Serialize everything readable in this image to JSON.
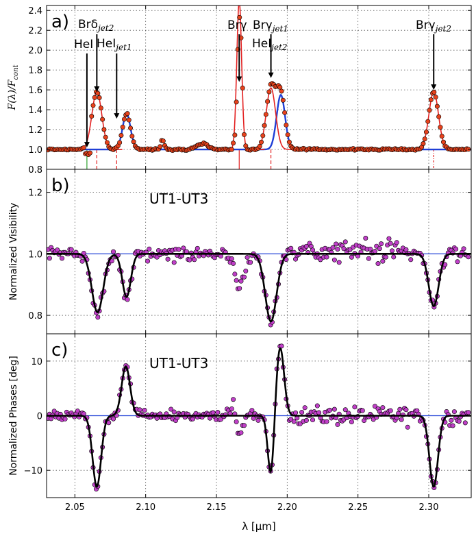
{
  "chart_data": [
    {
      "panel_label": "a)",
      "type": "line",
      "ylabel": "F(λ)/F_cont",
      "ylabel_main": "F(λ)/F",
      "ylabel_sub": "cont",
      "xlim": [
        2.03,
        2.33
      ],
      "ylim": [
        0.8,
        2.45
      ],
      "yticks": [
        "0.8",
        "1.0",
        "1.2",
        "1.4",
        "1.6",
        "1.8",
        "2.0",
        "2.2",
        "2.4"
      ],
      "grid": true,
      "annotations": [
        {
          "main": "HeI",
          "sub": "",
          "x": 2.0585
        },
        {
          "main": "Brδ",
          "sub": "jet2",
          "x": 2.0655
        },
        {
          "main": "HeI",
          "sub": "jet1",
          "x": 2.0795
        },
        {
          "main": "Brγ",
          "sub": "",
          "x": 2.1661
        },
        {
          "main": "Brγ",
          "sub": "jet1",
          "x": 2.1885
        },
        {
          "main": "HeI",
          "sub": "jet2",
          "x": 2.1885
        },
        {
          "main": "Brγ",
          "sub": "jet2",
          "x": 2.3035
        }
      ],
      "series": [
        {
          "kind": "observed spectrum",
          "x": [
            2.03,
            2.045,
            2.057,
            2.062,
            2.066,
            2.07,
            2.075,
            2.08,
            2.087,
            2.093,
            2.1,
            2.112,
            2.12,
            2.135,
            2.145,
            2.155,
            2.162,
            2.166,
            2.17,
            2.18,
            2.186,
            2.19,
            2.196,
            2.203,
            2.21,
            2.25,
            2.29,
            2.298,
            2.302,
            2.306,
            2.314,
            2.33
          ],
          "y": [
            1.02,
            1.01,
            1.0,
            1.35,
            1.62,
            1.5,
            1.28,
            1.08,
            1.35,
            1.05,
            1.0,
            1.12,
            1.0,
            1.06,
            1.03,
            1.06,
            1.5,
            2.3,
            1.3,
            1.25,
            1.65,
            1.63,
            1.5,
            1.1,
            1.0,
            1.0,
            1.02,
            1.35,
            1.58,
            1.35,
            1.02,
            1.0
          ]
        },
        {
          "kind": "Gaussian fits (red)",
          "peaks": [
            {
              "center": 2.0655,
              "height": 0.58
            },
            {
              "center": 2.1661,
              "height": 1.5
            },
            {
              "center": 2.1885,
              "height": 0.62
            },
            {
              "center": 2.3035,
              "height": 0.58
            }
          ]
        },
        {
          "kind": "Gaussian fits (blue)",
          "peaks": [
            {
              "center": 2.0865,
              "height": 0.36
            },
            {
              "center": 2.1955,
              "height": 0.55
            }
          ]
        }
      ]
    },
    {
      "panel_label": "b)",
      "baseline_label": "UT1-UT3",
      "type": "line",
      "ylabel": "Normalized Visibility",
      "xlim": [
        2.03,
        2.33
      ],
      "ylim": [
        0.74,
        1.275
      ],
      "yticks": [
        "0.8",
        "1.0",
        "1.2"
      ],
      "grid": true,
      "reference_level": 1.0,
      "model_dips": [
        {
          "center": 2.066,
          "depth": 0.19
        },
        {
          "center": 2.0865,
          "depth": 0.14
        },
        {
          "center": 2.1885,
          "depth": 0.22
        },
        {
          "center": 2.3035,
          "depth": 0.17
        }
      ],
      "observed_scatter_approx": 0.03
    },
    {
      "panel_label": "c)",
      "baseline_label": "UT1-UT3",
      "type": "line",
      "ylabel": "Normalized Phases [deg]",
      "xlabel": "λ [μm]",
      "xlim": [
        2.03,
        2.33
      ],
      "ylim": [
        -15,
        15
      ],
      "yticks": [
        "−10",
        "0",
        "10"
      ],
      "xticks": [
        "2.05",
        "2.10",
        "2.15",
        "2.20",
        "2.25",
        "2.30"
      ],
      "grid": true,
      "reference_level": 0,
      "model_features": [
        {
          "center": 2.0655,
          "amplitude": -13
        },
        {
          "center": 2.086,
          "amplitude": 9
        },
        {
          "center": 2.1885,
          "amplitude": -11
        },
        {
          "center": 2.195,
          "amplitude": 12.5
        },
        {
          "center": 2.3035,
          "amplitude": -13
        }
      ],
      "observed_scatter_approx": 1.5
    }
  ]
}
